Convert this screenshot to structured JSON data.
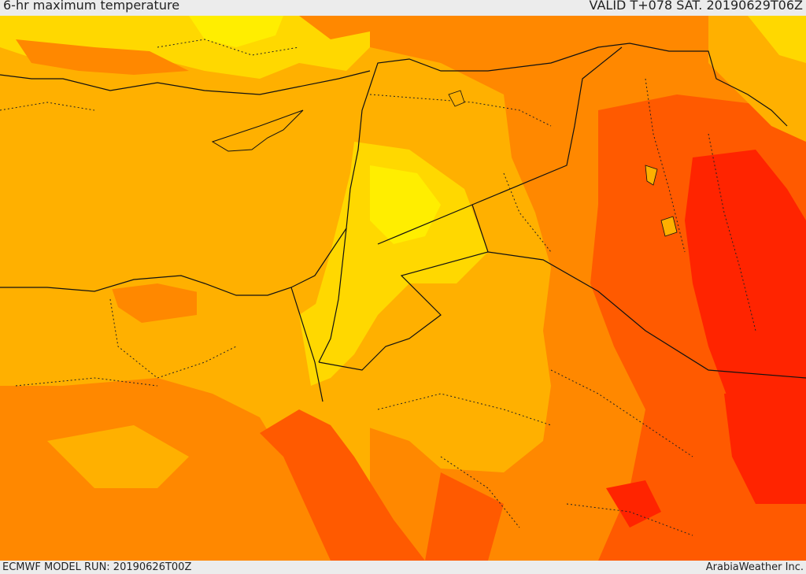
{
  "header": {
    "title": "6-hr maximum temperature",
    "valid": "VALID T+078 SAT. 20190629T06Z"
  },
  "footer": {
    "model_run": "ECMWF MODEL RUN: 20190626T00Z",
    "credit": "ArabiaWeather Inc."
  },
  "palette": {
    "yellow": "#ffee00",
    "light_yellow": "#ffd800",
    "light_orange": "#ffb000",
    "orange": "#ff8800",
    "dark_orange": "#ff5a00",
    "red": "#ff2400",
    "border": "#111111"
  }
}
